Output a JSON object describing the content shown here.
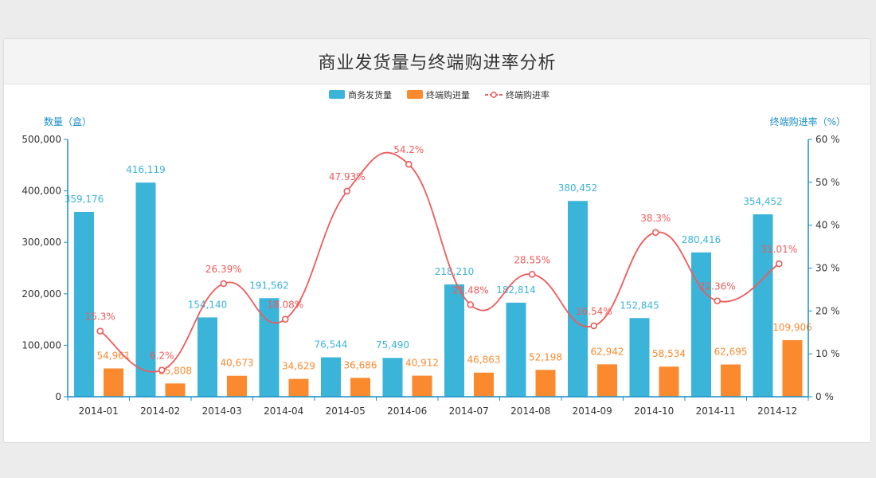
{
  "chart_data": {
    "type": "bar",
    "title": "商业发货量与终端购进率分析",
    "categories": [
      "2014-01",
      "2014-02",
      "2014-03",
      "2014-04",
      "2014-05",
      "2014-06",
      "2014-07",
      "2014-08",
      "2014-09",
      "2014-10",
      "2014-11",
      "2014-12"
    ],
    "ylabel_left": "数量（盒）",
    "ylabel_right": "终端购进率（%）",
    "ylim_left": [
      0,
      500000
    ],
    "ylim_right": [
      0,
      60
    ],
    "yticks_left": [
      "0",
      "100,000",
      "200,000",
      "300,000",
      "400,000",
      "500,000"
    ],
    "yticks_right": [
      "0 %",
      "10 %",
      "20 %",
      "30 %",
      "40 %",
      "50 %",
      "60 %"
    ],
    "legend_position": "top-center",
    "grid": false,
    "series": [
      {
        "name": "商务发货量",
        "type": "bar",
        "axis": "left",
        "color": "#3bb4d9",
        "values": [
          359176,
          416119,
          154140,
          191562,
          76544,
          75490,
          218210,
          182814,
          380452,
          152845,
          280416,
          354452
        ],
        "labels": [
          "359,176",
          "416,119",
          "154,140",
          "191,562",
          "76,544",
          "75,490",
          "218,210",
          "182,814",
          "380,452",
          "152,845",
          "280,416",
          "354,452"
        ]
      },
      {
        "name": "终端购进量",
        "type": "bar",
        "axis": "left",
        "color": "#fb8a2e",
        "values": [
          54961,
          25808,
          40673,
          34629,
          36686,
          40912,
          46863,
          52198,
          62942,
          58534,
          62695,
          109906
        ],
        "labels": [
          "54,961",
          "25,808",
          "40,673",
          "34,629",
          "36,686",
          "40,912",
          "46,863",
          "52,198",
          "62,942",
          "58,534",
          "62,695",
          "109,906"
        ]
      },
      {
        "name": "终端购进率",
        "type": "line",
        "axis": "right",
        "color": "#f05a5a",
        "values": [
          15.3,
          6.2,
          26.39,
          18.08,
          47.93,
          54.2,
          21.48,
          28.55,
          16.54,
          38.3,
          22.36,
          31.01
        ],
        "labels": [
          "15.3%",
          "6.2%",
          "26.39%",
          "18.08%",
          "47.93%",
          "54.2%",
          "21.48%",
          "28.55%",
          "16.54%",
          "38.3%",
          "22.36%",
          "31.01%"
        ]
      }
    ]
  }
}
